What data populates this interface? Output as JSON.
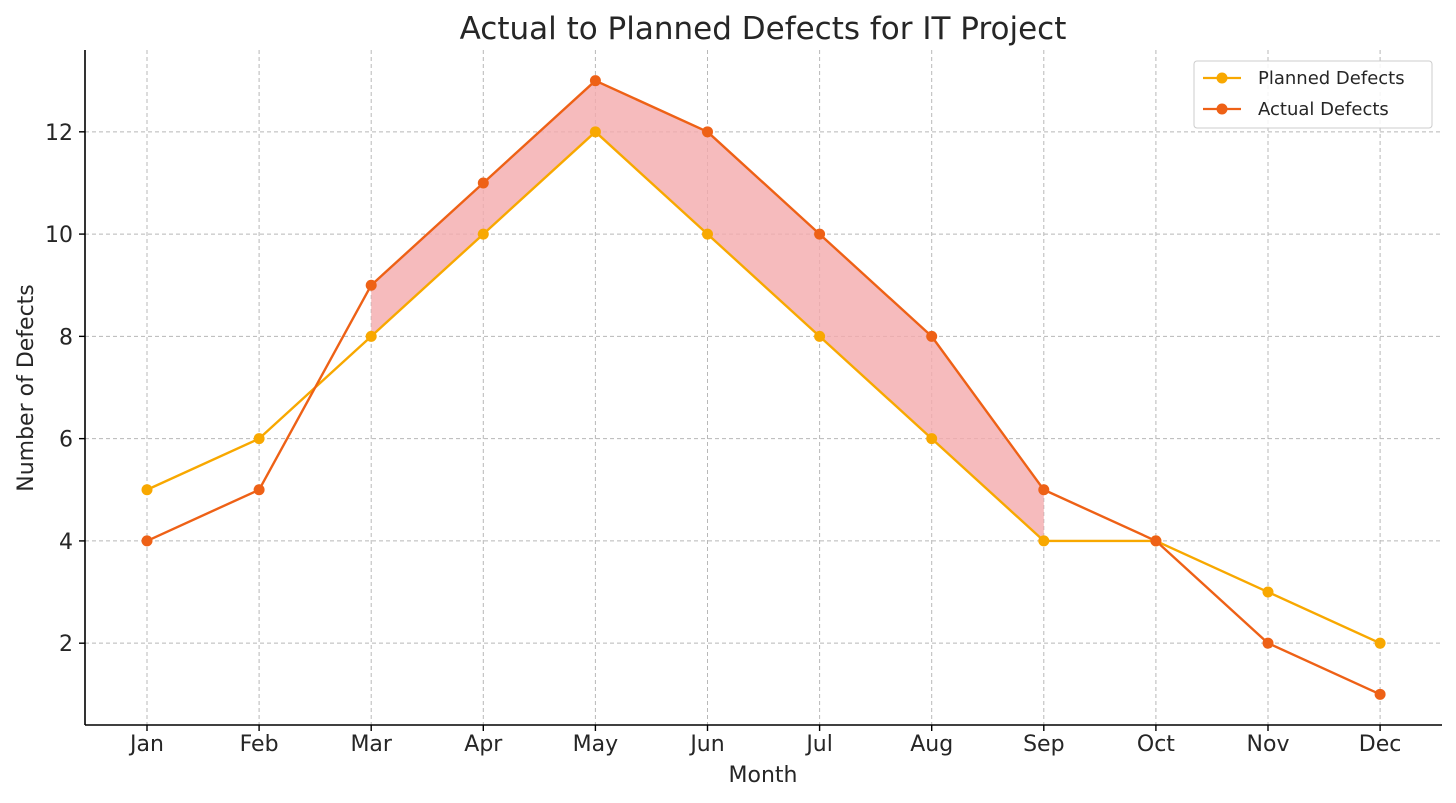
{
  "chart_data": {
    "type": "line",
    "title": "Actual to Planned Defects for IT Project",
    "xlabel": "Month",
    "ylabel": "Number of Defects",
    "categories": [
      "Jan",
      "Feb",
      "Mar",
      "Apr",
      "May",
      "Jun",
      "Jul",
      "Aug",
      "Sep",
      "Oct",
      "Nov",
      "Dec"
    ],
    "yticks": [
      2,
      4,
      6,
      8,
      10,
      12
    ],
    "ylim": [
      0.4,
      13.6
    ],
    "grid": true,
    "legend_position": "top-right",
    "fill_between": {
      "description": "shaded where Actual exceeds Planned",
      "color": "#f4aaad",
      "range": [
        "Mar",
        "Sep"
      ]
    },
    "series": [
      {
        "name": "Planned Defects",
        "color": "#f8a800",
        "values": [
          5,
          6,
          8,
          10,
          12,
          10,
          8,
          6,
          4,
          4,
          3,
          2
        ]
      },
      {
        "name": "Actual Defects",
        "color": "#ee6116",
        "values": [
          4,
          5,
          9,
          11,
          13,
          12,
          10,
          8,
          5,
          4,
          2,
          1
        ]
      }
    ]
  }
}
